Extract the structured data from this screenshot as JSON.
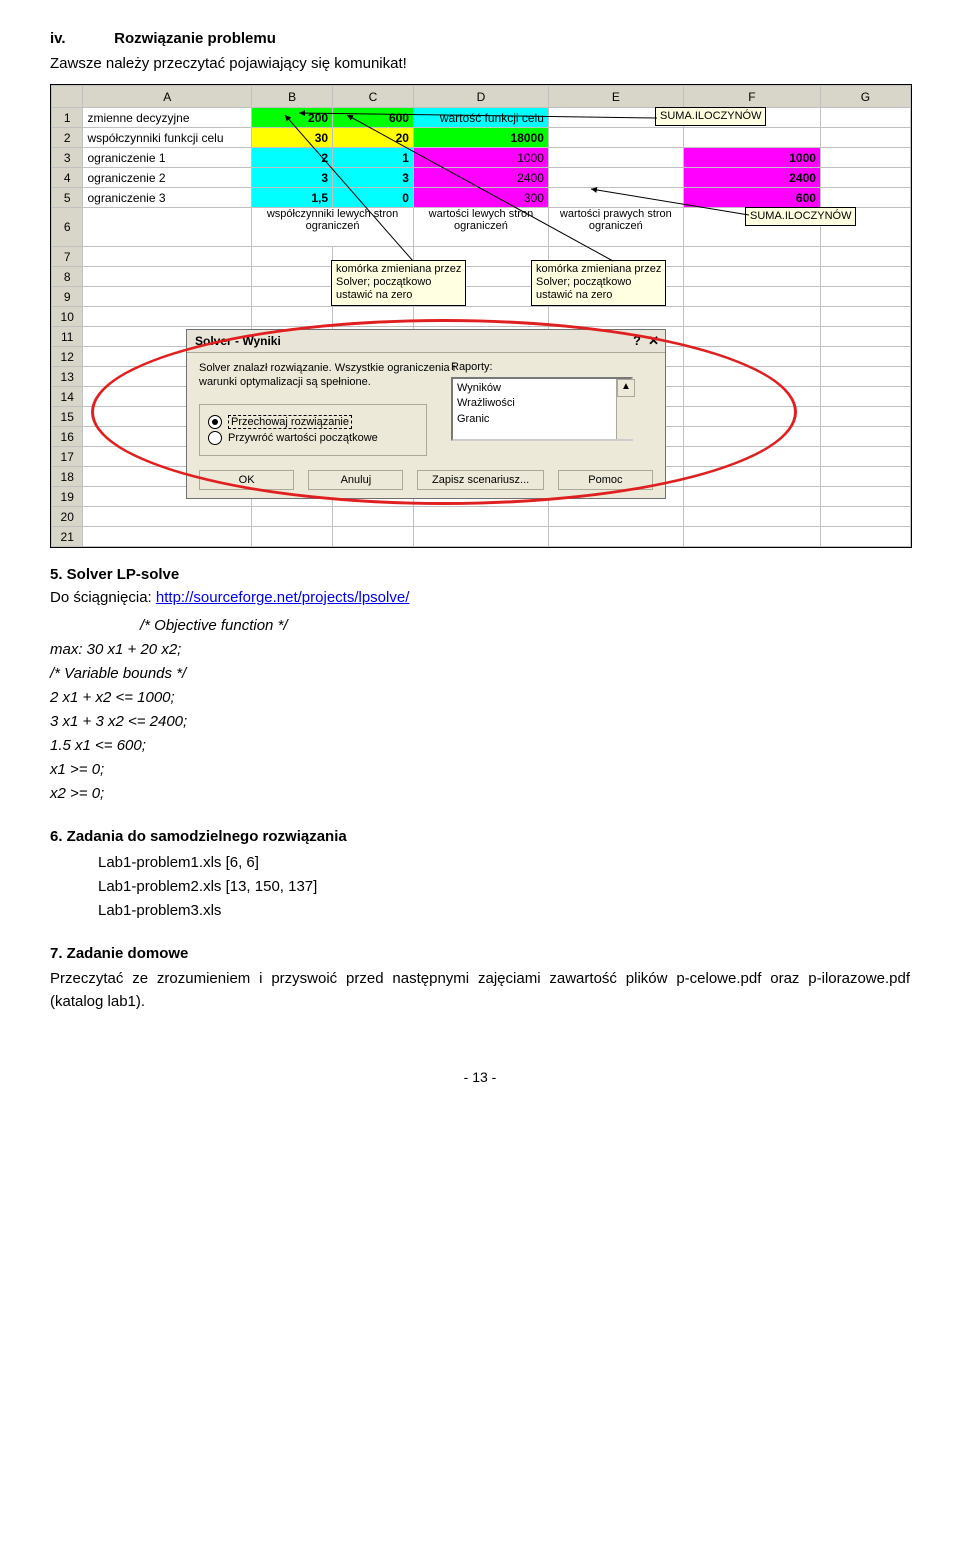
{
  "sec4": {
    "roman": "iv.",
    "title": "Rozwiązanie problemu",
    "sub": "Zawsze należy przeczytać pojawiający się komunikat!"
  },
  "tips": {
    "tip1": "SUMA.ILOCZYNÓW",
    "tip2": "SUMA.ILOCZYNÓW",
    "tip3_l1": "komórka zmieniana przez",
    "tip3_l2": "Solver; początkowo",
    "tip3_l3": "ustawić na zero",
    "tip4_l1": "komórka zmieniana przez",
    "tip4_l2": "Solver; początkowo",
    "tip4_l3": "ustawić na zero"
  },
  "sheet": {
    "cols": [
      "",
      "A",
      "B",
      "C",
      "D",
      "E",
      "F",
      "G"
    ],
    "rows": [
      {
        "n": "1",
        "A": "zmienne decyzyjne",
        "B": "200",
        "C": "600",
        "D": "wartość funkcji celu",
        "E": "",
        "F": "",
        "G": "",
        "styleB": "background:#00ff00;font-weight:bold;",
        "styleC": "background:#00ff00;font-weight:bold;",
        "styleD": "background:#00ffff;"
      },
      {
        "n": "2",
        "A": "współczynniki funkcji celu",
        "B": "30",
        "C": "20",
        "D": "18000",
        "E": "",
        "F": "",
        "G": "",
        "styleB": "background:#ffff00;font-weight:bold;",
        "styleC": "background:#ffff00;font-weight:bold;",
        "styleD": "background:#00ff00;font-weight:bold;"
      },
      {
        "n": "3",
        "A": "ograniczenie 1",
        "B": "2",
        "C": "1",
        "D": "1000",
        "E": "",
        "F": "1000",
        "G": "",
        "styleB": "background:#00ffff;font-weight:bold;",
        "styleC": "background:#00ffff;font-weight:bold;",
        "styleD": "background:#ff00ff;",
        "styleF": "background:#ff00ff;font-weight:bold;"
      },
      {
        "n": "4",
        "A": "ograniczenie 2",
        "B": "3",
        "C": "3",
        "D": "2400",
        "E": "",
        "F": "2400",
        "G": "",
        "styleB": "background:#00ffff;font-weight:bold;",
        "styleC": "background:#00ffff;font-weight:bold;",
        "styleD": "background:#ff00ff;",
        "styleF": "background:#ff00ff;font-weight:bold;"
      },
      {
        "n": "5",
        "A": "ograniczenie 3",
        "B": "1,5",
        "C": "0",
        "D": "300",
        "E": "",
        "F": "600",
        "G": "",
        "styleB": "background:#00ffff;font-weight:bold;",
        "styleC": "background:#00ffff;font-weight:bold;",
        "styleD": "background:#ff00ff;",
        "styleF": "background:#ff00ff;font-weight:bold;"
      },
      {
        "n": "6",
        "A": "",
        "B": "",
        "C": "",
        "D": "",
        "E": "",
        "F": "",
        "G": "",
        "textB": "współczynniki lewych stron ograniczeń",
        "textD": "wartości lewych stron ograniczeń",
        "textE": "wartości prawych stron ograniczeń"
      },
      {
        "n": "7"
      },
      {
        "n": "8"
      },
      {
        "n": "9"
      },
      {
        "n": "10"
      },
      {
        "n": "11"
      },
      {
        "n": "12"
      },
      {
        "n": "13"
      },
      {
        "n": "14"
      },
      {
        "n": "15"
      },
      {
        "n": "16"
      },
      {
        "n": "17"
      },
      {
        "n": "18"
      },
      {
        "n": "19"
      },
      {
        "n": "20"
      },
      {
        "n": "21"
      }
    ]
  },
  "solver": {
    "title": "Solver - Wyniki",
    "msg1": "Solver znalazł rozwiązanie. Wszystkie ograniczenia i",
    "msg2": "warunki optymalizacji są spełnione.",
    "opt1": "Przechowaj rozwiązanie",
    "opt2": "Przywróć wartości początkowe",
    "raporty_label": "Raporty:",
    "rap1": "Wyników",
    "rap2": "Wrażliwości",
    "rap3": "Granic",
    "btn_ok": "OK",
    "btn_cancel": "Anuluj",
    "btn_scen": "Zapisz scenariusz...",
    "btn_help": "Pomoc"
  },
  "sec5": {
    "title": "5. Solver LP-solve",
    "download_pre": "Do ściągnięcia: ",
    "link": "http://sourceforge.net/projects/lpsolve/",
    "comment": "/* Objective function */",
    "l1": "max: 30 x1 + 20 x2;",
    "comment2": "/* Variable bounds */",
    "l2": "2 x1 + x2 <= 1000;",
    "l3": "3 x1 + 3 x2 <= 2400;",
    "l4": "1.5 x1 <= 600;",
    "l5": "x1 >= 0;",
    "l6": "x2 >= 0;"
  },
  "sec6": {
    "title": "6. Zadania do samodzielnego rozwiązania",
    "i1": "Lab1-problem1.xls [6, 6]",
    "i2": "Lab1-problem2.xls [13, 150, 137]",
    "i3": "Lab1-problem3.xls"
  },
  "sec7": {
    "title": "7. Zadanie domowe",
    "body": "Przeczytać ze zrozumieniem i przyswoić przed następnymi zajęciami zawartość plików p-celowe.pdf oraz p-ilorazowe.pdf (katalog lab1)."
  },
  "pagenum": "- 13 -"
}
